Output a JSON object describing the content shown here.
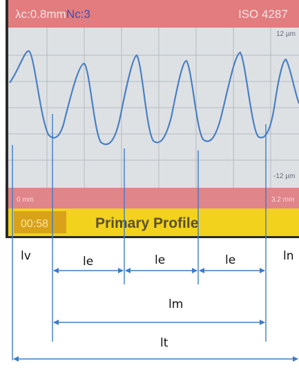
{
  "screen": {
    "header": {
      "cutoff": "λc:0.8mm",
      "count": "Nc:3",
      "standard": "ISO 4287"
    },
    "axis": {
      "top": "12 µm",
      "bottom": "-12 µm",
      "start": "0 mm",
      "end": "3.2 mm"
    },
    "status": {
      "time": "00:58",
      "mode": "Primary Profile"
    }
  },
  "diagram": {
    "lv": "lv",
    "le": [
      "le",
      "le",
      "le"
    ],
    "ln": "ln",
    "lm": "lm",
    "lt": "lt"
  }
}
